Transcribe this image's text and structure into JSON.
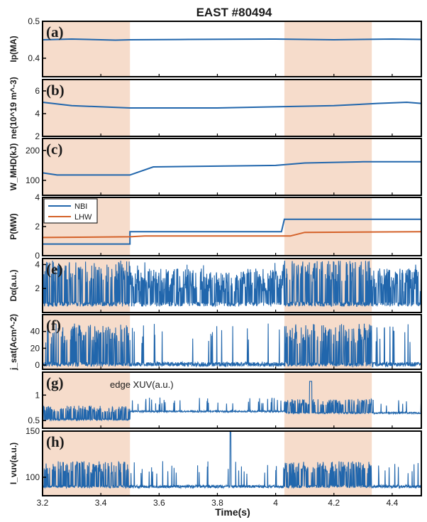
{
  "title": "EAST #80494",
  "x_label": "Time(s)",
  "x_ticks": [
    "3.2",
    "3.4",
    "3.6",
    "3.8",
    "4",
    "4.2",
    "4.4"
  ],
  "colors": {
    "series": "#2166ac",
    "series_light": "#5a8fbf",
    "lhw": "#d4622a",
    "shade": "#f6dccb",
    "axis": "#000000"
  },
  "chart_data": {
    "type": "line",
    "title": "EAST #80494",
    "xlabel": "Time(s)",
    "xlim": [
      3.2,
      4.5
    ],
    "shaded_intervals": [
      [
        3.2,
        3.5
      ],
      [
        4.03,
        4.33
      ]
    ],
    "panels": [
      {
        "id": "a",
        "tag": "(a)",
        "ylabel": "Ip(MA)",
        "ylim": [
          0.35,
          0.5
        ],
        "yticks": [
          "0.4",
          "0.5"
        ],
        "series": [
          {
            "values": [
              [
                3.2,
                0.45
              ],
              [
                3.3,
                0.452
              ],
              [
                3.45,
                0.449
              ],
              [
                3.5,
                0.45
              ],
              [
                3.7,
                0.451
              ],
              [
                4.0,
                0.452
              ],
              [
                4.2,
                0.45
              ],
              [
                4.4,
                0.452
              ],
              [
                4.5,
                0.451
              ]
            ]
          }
        ]
      },
      {
        "id": "b",
        "tag": "(b)",
        "ylabel": "ne(10^19 m^-3)",
        "ylim": [
          2,
          7
        ],
        "yticks": [
          "2",
          "4",
          "6"
        ],
        "series": [
          {
            "values": [
              [
                3.2,
                5.0
              ],
              [
                3.3,
                4.7
              ],
              [
                3.4,
                4.6
              ],
              [
                3.5,
                4.5
              ],
              [
                3.8,
                4.5
              ],
              [
                4.0,
                4.6
              ],
              [
                4.2,
                4.7
              ],
              [
                4.35,
                4.9
              ],
              [
                4.45,
                5.0
              ],
              [
                4.5,
                4.9
              ]
            ]
          }
        ]
      },
      {
        "id": "c",
        "tag": "(c)",
        "ylabel": "W_MHD(kJ)",
        "ylim": [
          50,
          240
        ],
        "yticks": [
          "100",
          "200"
        ],
        "series": [
          {
            "values": [
              [
                3.2,
                125
              ],
              [
                3.25,
                118
              ],
              [
                3.5,
                118
              ],
              [
                3.58,
                145
              ],
              [
                4.0,
                150
              ],
              [
                4.1,
                158
              ],
              [
                4.3,
                162
              ],
              [
                4.5,
                162
              ]
            ]
          }
        ]
      },
      {
        "id": "d",
        "tag": "(d)",
        "ylabel": "P(MW)",
        "ylim": [
          0,
          4
        ],
        "yticks": [
          "0",
          "2",
          "4"
        ],
        "legend": [
          "NBI",
          "LHW"
        ],
        "series": [
          {
            "name": "NBI",
            "values": [
              [
                3.2,
                0.8
              ],
              [
                3.5,
                0.8
              ],
              [
                3.5,
                1.65
              ],
              [
                4.02,
                1.65
              ],
              [
                4.03,
                2.5
              ],
              [
                4.5,
                2.5
              ]
            ]
          },
          {
            "name": "LHW",
            "values": [
              [
                3.2,
                1.25
              ],
              [
                3.5,
                1.3
              ],
              [
                3.55,
                1.35
              ],
              [
                4.05,
                1.35
              ],
              [
                4.1,
                1.6
              ],
              [
                4.5,
                1.65
              ]
            ]
          }
        ]
      },
      {
        "id": "e",
        "tag": "(e)",
        "ylabel": "Dα(a.u.)",
        "ylim": [
          0,
          4.5
        ],
        "yticks": [
          "2",
          "4"
        ],
        "series": [
          {
            "pulsed": true,
            "base": 0.7,
            "peak": 4.0
          }
        ]
      },
      {
        "id": "f",
        "tag": "(f)",
        "ylabel": "j_sat(Acm^-2)",
        "ylim": [
          -5,
          60
        ],
        "yticks": [
          "0",
          "20",
          "40"
        ],
        "series": [
          {
            "pulsed": true,
            "base": 1,
            "peak": 45
          }
        ]
      },
      {
        "id": "g",
        "tag": "(g)",
        "ylabel": "",
        "ylim": [
          0.35,
          1.45
        ],
        "yticks": [
          "0.5",
          "1"
        ],
        "annotation": "edge XUV(a.u.)",
        "series": [
          {
            "pulsed": true,
            "base": 0.55,
            "peak": 0.85
          }
        ]
      },
      {
        "id": "h",
        "tag": "(h)",
        "ylabel": "I_vuv(a.u.)",
        "ylim": [
          80,
          150
        ],
        "yticks": [
          "100",
          "150"
        ],
        "series": [
          {
            "pulsed": true,
            "base": 90,
            "peak": 115
          }
        ]
      }
    ]
  }
}
